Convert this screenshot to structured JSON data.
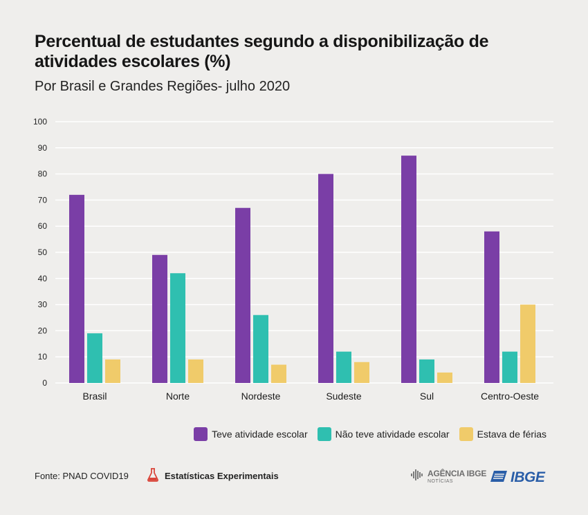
{
  "header": {
    "title": "Percentual de estudantes segundo a disponibilização de atividades escolares (%)",
    "subtitle": "Por Brasil e Grandes Regiões- julho 2020"
  },
  "chart_data": {
    "type": "bar",
    "title": "Percentual de estudantes segundo a disponibilização de atividades escolares (%)",
    "subtitle": "Por Brasil e Grandes Regiões- julho 2020",
    "categories": [
      "Brasil",
      "Norte",
      "Nordeste",
      "Sudeste",
      "Sul",
      "Centro-Oeste"
    ],
    "series": [
      {
        "name": "Teve atividade escolar",
        "color": "#7a3ea6",
        "values": [
          72,
          49,
          67,
          80,
          87,
          58
        ]
      },
      {
        "name": "Não teve atividade escolar",
        "color": "#2fbfb0",
        "values": [
          19,
          42,
          26,
          12,
          9,
          12
        ]
      },
      {
        "name": "Estava de férias",
        "color": "#f0cb6a",
        "values": [
          9,
          9,
          7,
          8,
          4,
          30
        ]
      }
    ],
    "yticks": [
      "0",
      "10",
      "20",
      "30",
      "40",
      "50",
      "60",
      "70",
      "80",
      "90",
      "100"
    ],
    "ylim": [
      0,
      100
    ],
    "grid": true,
    "legend_position": "bottom-right"
  },
  "footer": {
    "source": "Fonte: PNAD COVID19",
    "experimental": "Estatísticas Experimentais",
    "agencia_main": "AGÊNCIA IBGE",
    "agencia_sub": "NOTÍCIAS",
    "ibge": "IBGE",
    "experimental_icon": "flask-icon"
  }
}
